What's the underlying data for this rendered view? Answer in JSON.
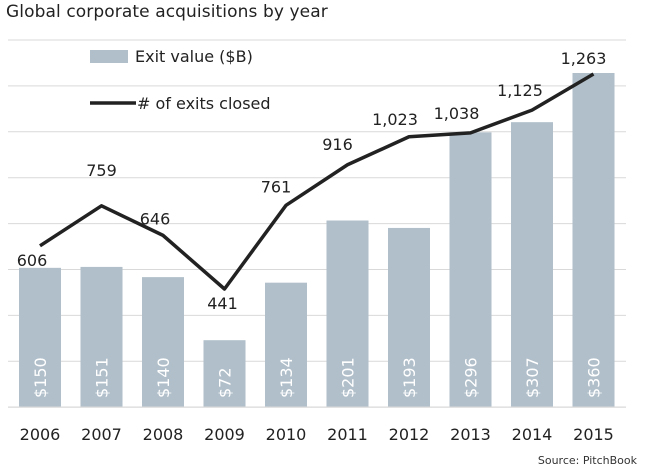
{
  "chart_data": {
    "type": "bar",
    "title": "Global corporate acquisitions by year",
    "source": "Source: PitchBook",
    "categories": [
      "2006",
      "2007",
      "2008",
      "2009",
      "2010",
      "2011",
      "2012",
      "2013",
      "2014",
      "2015"
    ],
    "series": [
      {
        "name": "Exit value ($B)",
        "type": "bar",
        "values": [
          150,
          151,
          140,
          72,
          134,
          201,
          193,
          296,
          307,
          360
        ],
        "labels": [
          "$150",
          "$151",
          "$140",
          "$72",
          "$134",
          "$201",
          "$193",
          "$296",
          "$307",
          "$360"
        ],
        "color": "#b1bfca"
      },
      {
        "name": "# of exits closed",
        "type": "line",
        "values": [
          606,
          759,
          646,
          441,
          761,
          916,
          1023,
          1038,
          1125,
          1263
        ],
        "labels": [
          "606",
          "759",
          "646",
          "441",
          "761",
          "916",
          "1,023",
          "1,038",
          "1,125",
          "1,263"
        ],
        "color": "#222222"
      }
    ],
    "bar_axis_range": [
      0,
      360
    ],
    "line_axis_range": [
      441,
      1263
    ],
    "grid": true,
    "legend": "top-left"
  }
}
